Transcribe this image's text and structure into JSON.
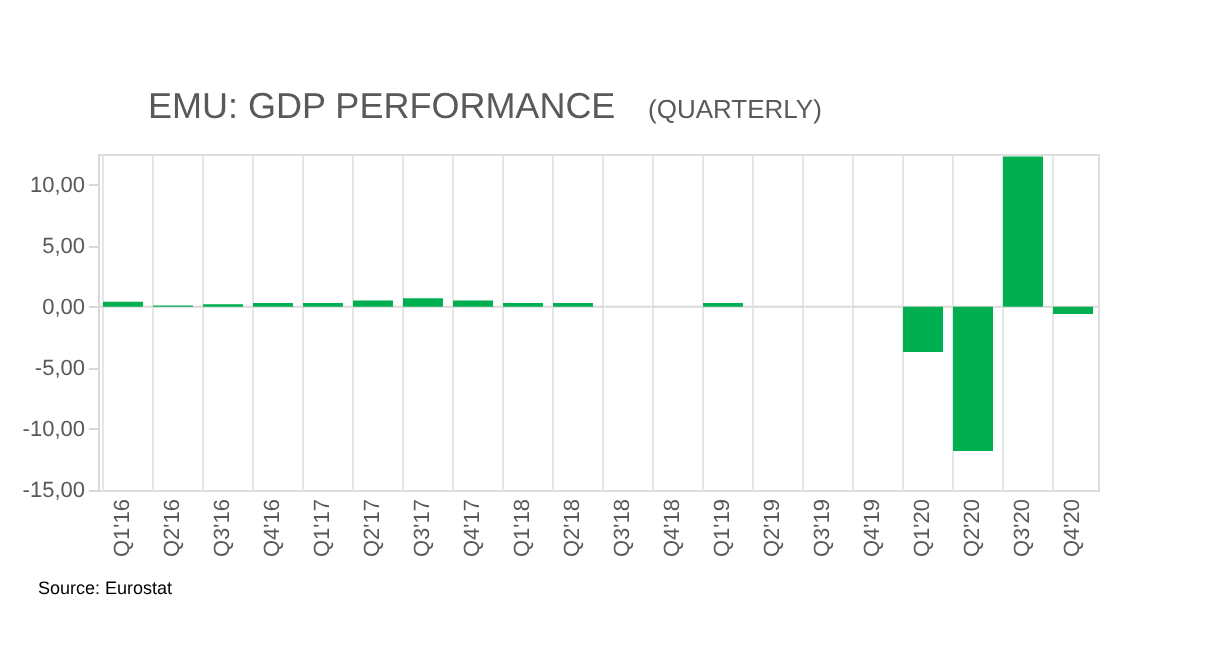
{
  "chart_data": {
    "type": "bar",
    "title": "EMU: GDP PERFORMANCE",
    "subtitle": "(QUARTERLY)",
    "categories": [
      "Q1'16",
      "Q2'16",
      "Q3'16",
      "Q4'16",
      "Q1'17",
      "Q2'17",
      "Q3'17",
      "Q4'17",
      "Q1'18",
      "Q2'18",
      "Q3'18",
      "Q4'18",
      "Q1'19",
      "Q2'19",
      "Q3'19",
      "Q4'19",
      "Q1'20",
      "Q2'20",
      "Q3'20",
      "Q4'20"
    ],
    "values": [
      0.4,
      0.1,
      0.2,
      0.3,
      0.3,
      0.5,
      0.7,
      0.5,
      0.3,
      0.3,
      null,
      null,
      0.3,
      null,
      null,
      null,
      -3.7,
      -11.8,
      12.3,
      -0.6
    ],
    "color": "#00b050",
    "ylim": [
      -15,
      12.5
    ],
    "yticks": [
      {
        "value": -15,
        "label": "-15,00"
      },
      {
        "value": -10,
        "label": "-10,00"
      },
      {
        "value": -5,
        "label": "-5,00"
      },
      {
        "value": 0,
        "label": "0,00"
      },
      {
        "value": 5,
        "label": "5,00"
      },
      {
        "value": 10,
        "label": "10,00"
      }
    ],
    "grid": "x",
    "ref_lines": [
      {
        "axis": "y",
        "value": 0,
        "color": "#d9d9d9"
      }
    ],
    "annotations": [
      "Source: Eurostat"
    ]
  }
}
